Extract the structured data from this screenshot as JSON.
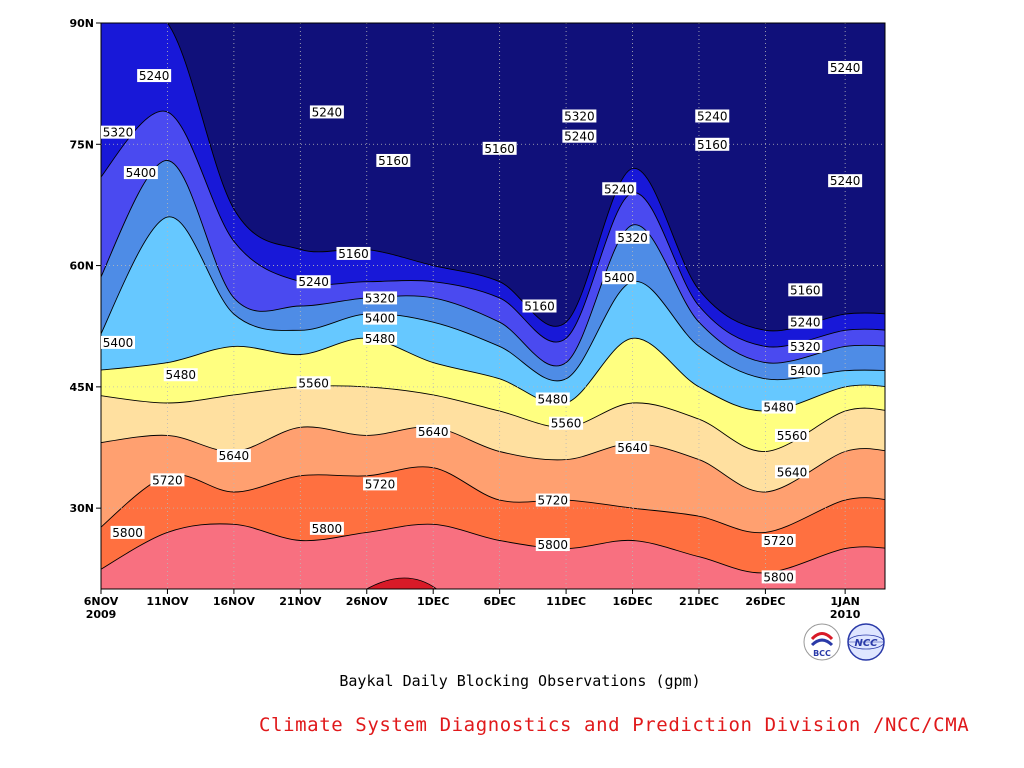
{
  "chart_data": {
    "type": "heatmap",
    "title": "Baykal Daily Blocking Observations (gpm)",
    "x_ticks": [
      {
        "label": "6NOV",
        "sublabel": "2009",
        "date": "2009-11-06"
      },
      {
        "label": "11NOV",
        "date": "2009-11-11"
      },
      {
        "label": "16NOV",
        "date": "2009-11-16"
      },
      {
        "label": "21NOV",
        "date": "2009-11-21"
      },
      {
        "label": "26NOV",
        "date": "2009-11-26"
      },
      {
        "label": "1DEC",
        "date": "2009-12-01"
      },
      {
        "label": "6DEC",
        "date": "2009-12-06"
      },
      {
        "label": "11DEC",
        "date": "2009-12-11"
      },
      {
        "label": "16DEC",
        "date": "2009-12-16"
      },
      {
        "label": "21DEC",
        "date": "2009-12-21"
      },
      {
        "label": "26DEC",
        "date": "2009-12-26"
      },
      {
        "label": "1JAN",
        "sublabel": "2010",
        "date": "2010-01-01"
      }
    ],
    "xlim": [
      "2009-11-06",
      "2010-01-04"
    ],
    "y_ticks": [
      {
        "label": "30N",
        "value": 30
      },
      {
        "label": "45N",
        "value": 45
      },
      {
        "label": "60N",
        "value": 60
      },
      {
        "label": "75N",
        "value": 75
      },
      {
        "label": "90N",
        "value": 90
      }
    ],
    "ylim": [
      20,
      90
    ],
    "grid": true,
    "contour_levels": [
      5160,
      5240,
      5320,
      5400,
      5480,
      5560,
      5640,
      5720,
      5800,
      5880
    ],
    "fill_colors": [
      "#10107a",
      "#1818d8",
      "#4a4af0",
      "#4e8ce6",
      "#66c8ff",
      "#ffff80",
      "#ffe0a0",
      "#ffa070",
      "#ff7040",
      "#f87080",
      "#d81a28"
    ],
    "contours": [
      {
        "level": 5800,
        "lat": [
          22,
          27,
          28,
          26,
          27,
          28,
          26,
          25,
          26,
          24,
          22,
          25
        ]
      },
      {
        "level": 5720,
        "lat": [
          27,
          34,
          32,
          34,
          34,
          35,
          31,
          31,
          30,
          29,
          27,
          31
        ]
      },
      {
        "level": 5640,
        "lat": [
          38,
          39,
          37,
          40,
          39,
          40,
          37,
          36,
          38,
          36,
          32,
          37
        ]
      },
      {
        "level": 5560,
        "lat": [
          44,
          43,
          44,
          45,
          45,
          44,
          42,
          40,
          43,
          41,
          37,
          42
        ]
      },
      {
        "level": 5480,
        "lat": [
          47,
          48,
          50,
          49,
          51,
          48,
          46,
          43,
          51,
          45,
          42,
          45
        ]
      },
      {
        "level": 5400,
        "lat": [
          50,
          66,
          54,
          52,
          54,
          53,
          50,
          46,
          58,
          50,
          46,
          47
        ]
      },
      {
        "level": 5320,
        "lat": [
          57,
          73,
          56,
          55,
          56,
          56,
          53,
          48,
          65,
          53,
          48,
          50
        ]
      },
      {
        "level": 5240,
        "lat": [
          70,
          79,
          63,
          58,
          58,
          58,
          56,
          51,
          69,
          55,
          50,
          52
        ]
      },
      {
        "level": 5160,
        "lat": [
          90,
          90,
          67,
          62,
          62,
          60,
          58,
          53,
          72,
          57,
          52,
          54
        ]
      }
    ],
    "labels": [
      {
        "text": "5240",
        "date": "2009-11-10",
        "lat": 83.5
      },
      {
        "text": "5320",
        "date": "2009-11-06",
        "lat": 76.5
      },
      {
        "text": "5400",
        "date": "2009-11-09",
        "lat": 71.5
      },
      {
        "text": "5240",
        "date": "2009-11-23",
        "lat": 79
      },
      {
        "text": "5160",
        "date": "2009-11-28",
        "lat": 73
      },
      {
        "text": "5160",
        "date": "2009-11-25",
        "lat": 61.5
      },
      {
        "text": "5240",
        "date": "2009-11-22",
        "lat": 58
      },
      {
        "text": "5320",
        "date": "2009-11-27",
        "lat": 56
      },
      {
        "text": "5400",
        "date": "2009-11-27",
        "lat": 53.5
      },
      {
        "text": "5480",
        "date": "2009-11-27",
        "lat": 51
      },
      {
        "text": "5400",
        "date": "2009-11-06",
        "lat": 50.5
      },
      {
        "text": "5480",
        "date": "2009-11-12",
        "lat": 46.5
      },
      {
        "text": "5560",
        "date": "2009-11-22",
        "lat": 45.5
      },
      {
        "text": "5640",
        "date": "2009-11-16",
        "lat": 36.5
      },
      {
        "text": "5640",
        "date": "2009-12-01",
        "lat": 39.5
      },
      {
        "text": "5720",
        "date": "2009-11-11",
        "lat": 33.5
      },
      {
        "text": "5720",
        "date": "2009-11-27",
        "lat": 33
      },
      {
        "text": "5800",
        "date": "2009-11-08",
        "lat": 27
      },
      {
        "text": "5800",
        "date": "2009-11-23",
        "lat": 27.5
      },
      {
        "text": "5160",
        "date": "2009-12-06",
        "lat": 74.5
      },
      {
        "text": "5160",
        "date": "2009-12-09",
        "lat": 55
      },
      {
        "text": "5320",
        "date": "2009-12-12",
        "lat": 78.5
      },
      {
        "text": "5240",
        "date": "2009-12-12",
        "lat": 76
      },
      {
        "text": "5240",
        "date": "2009-12-15",
        "lat": 69.5
      },
      {
        "text": "5320",
        "date": "2009-12-16",
        "lat": 63.5
      },
      {
        "text": "5400",
        "date": "2009-12-15",
        "lat": 58.5
      },
      {
        "text": "5480",
        "date": "2009-12-10",
        "lat": 43.5
      },
      {
        "text": "5560",
        "date": "2009-12-11",
        "lat": 40.5
      },
      {
        "text": "5640",
        "date": "2009-12-16",
        "lat": 37.5
      },
      {
        "text": "5720",
        "date": "2009-12-10",
        "lat": 31
      },
      {
        "text": "5800",
        "date": "2009-12-10",
        "lat": 25.5
      },
      {
        "text": "5240",
        "date": "2009-12-22",
        "lat": 78.5
      },
      {
        "text": "5160",
        "date": "2009-12-22",
        "lat": 75
      },
      {
        "text": "5240",
        "date": "2010-01-01",
        "lat": 84.5
      },
      {
        "text": "5240",
        "date": "2010-01-01",
        "lat": 70.5
      },
      {
        "text": "5160",
        "date": "2009-12-29",
        "lat": 57
      },
      {
        "text": "5240",
        "date": "2009-12-29",
        "lat": 53
      },
      {
        "text": "5320",
        "date": "2009-12-29",
        "lat": 50
      },
      {
        "text": "5400",
        "date": "2009-12-29",
        "lat": 47
      },
      {
        "text": "5480",
        "date": "2009-12-27",
        "lat": 42.5
      },
      {
        "text": "5560",
        "date": "2009-12-28",
        "lat": 39
      },
      {
        "text": "5640",
        "date": "2009-12-28",
        "lat": 34.5
      },
      {
        "text": "5720",
        "date": "2009-12-27",
        "lat": 26
      },
      {
        "text": "5800",
        "date": "2009-12-27",
        "lat": 21.5
      }
    ]
  },
  "footer": {
    "credit": "Climate System Diagnostics and Prediction Division /NCC/CMA"
  },
  "logos": [
    {
      "name": "bcc-logo-icon",
      "text": "BCC",
      "color": "#d81a28"
    },
    {
      "name": "ncc-logo-icon",
      "text": "NCC",
      "color": "#2a3aa8"
    }
  ]
}
